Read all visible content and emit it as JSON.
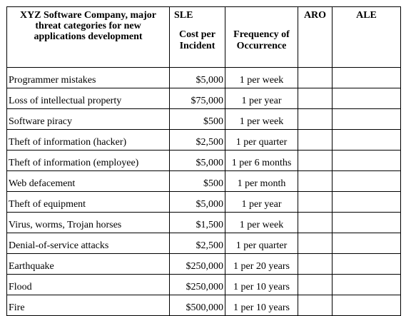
{
  "table": {
    "headers": {
      "threat": "XYZ Software Company, major threat categories for new applications development",
      "sle_title": "SLE",
      "sle_sub": "Cost per Incident",
      "freq": "Frequency of Occurrence",
      "aro": "ARO",
      "ale": "ALE"
    },
    "rows": [
      {
        "threat": "Programmer mistakes",
        "sle": "$5,000",
        "freq": "1 per week",
        "aro": "",
        "ale": ""
      },
      {
        "threat": "Loss of intellectual property",
        "sle": "$75,000",
        "freq": "1 per year",
        "aro": "",
        "ale": ""
      },
      {
        "threat": "Software piracy",
        "sle": "$500",
        "freq": "1 per week",
        "aro": "",
        "ale": ""
      },
      {
        "threat": "Theft of information (hacker)",
        "sle": "$2,500",
        "freq": "1 per quarter",
        "aro": "",
        "ale": ""
      },
      {
        "threat": "Theft of information (employee)",
        "sle": "$5,000",
        "freq": "1 per 6 months",
        "aro": "",
        "ale": ""
      },
      {
        "threat": "Web defacement",
        "sle": "$500",
        "freq": "1 per month",
        "aro": "",
        "ale": ""
      },
      {
        "threat": "Theft of equipment",
        "sle": "$5,000",
        "freq": "1 per year",
        "aro": "",
        "ale": ""
      },
      {
        "threat": "Virus, worms, Trojan horses",
        "sle": "$1,500",
        "freq": "1 per week",
        "aro": "",
        "ale": ""
      },
      {
        "threat": "Denial-of-service attacks",
        "sle": "$2,500",
        "freq": "1 per quarter",
        "aro": "",
        "ale": ""
      },
      {
        "threat": "Earthquake",
        "sle": "$250,000",
        "freq": "1 per 20 years",
        "aro": "",
        "ale": ""
      },
      {
        "threat": "Flood",
        "sle": "$250,000",
        "freq": "1 per 10 years",
        "aro": "",
        "ale": ""
      },
      {
        "threat": "Fire",
        "sle": "$500,000",
        "freq": "1 per 10 years",
        "aro": "",
        "ale": ""
      }
    ]
  }
}
